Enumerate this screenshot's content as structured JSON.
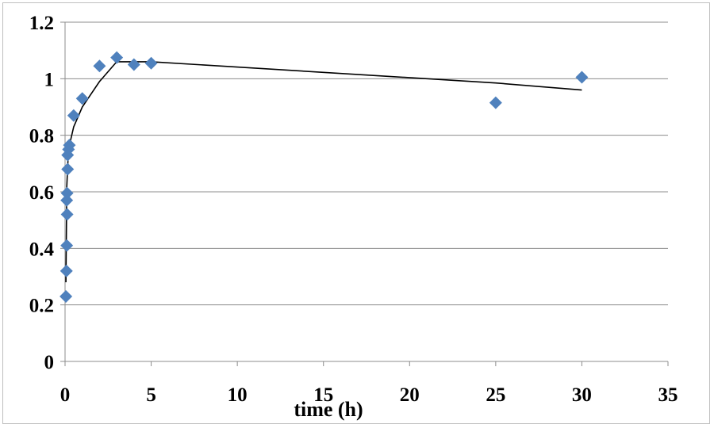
{
  "chart_data": {
    "type": "scatter",
    "title": "",
    "xlabel": "time (h)",
    "ylabel": "",
    "xlim": [
      0,
      35
    ],
    "ylim": [
      0,
      1.2
    ],
    "xticks": [
      0,
      5,
      10,
      15,
      20,
      25,
      30,
      35
    ],
    "yticks": [
      0,
      0.2,
      0.4,
      0.6,
      0.8,
      1,
      1.2
    ],
    "xtick_labels": [
      "0",
      "5",
      "10",
      "15",
      "20",
      "25",
      "30",
      "35"
    ],
    "ytick_labels": [
      "0",
      "0.2",
      "0.4",
      "0.6",
      "0.8",
      "1",
      "1.2"
    ],
    "grid": {
      "horizontal": true,
      "vertical": false
    },
    "legend": "none",
    "marker_color": "#4f81bd",
    "line_color": "#000000",
    "series": [
      {
        "kind": "points",
        "x": [
          0.05,
          0.08,
          0.1,
          0.12,
          0.1,
          0.12,
          0.15,
          0.15,
          0.2,
          0.25,
          0.5,
          1,
          2,
          3,
          4,
          5,
          25,
          30
        ],
        "y": [
          0.23,
          0.32,
          0.41,
          0.52,
          0.57,
          0.595,
          0.68,
          0.73,
          0.75,
          0.765,
          0.87,
          0.93,
          1.045,
          1.075,
          1.05,
          1.055,
          0.915,
          1.005
        ]
      },
      {
        "kind": "line",
        "x": [
          0.05,
          0.1,
          0.2,
          0.5,
          1,
          2,
          3,
          5,
          25,
          30
        ],
        "y": [
          0.28,
          0.62,
          0.75,
          0.83,
          0.9,
          0.99,
          1.06,
          1.06,
          0.985,
          0.96
        ]
      }
    ]
  }
}
